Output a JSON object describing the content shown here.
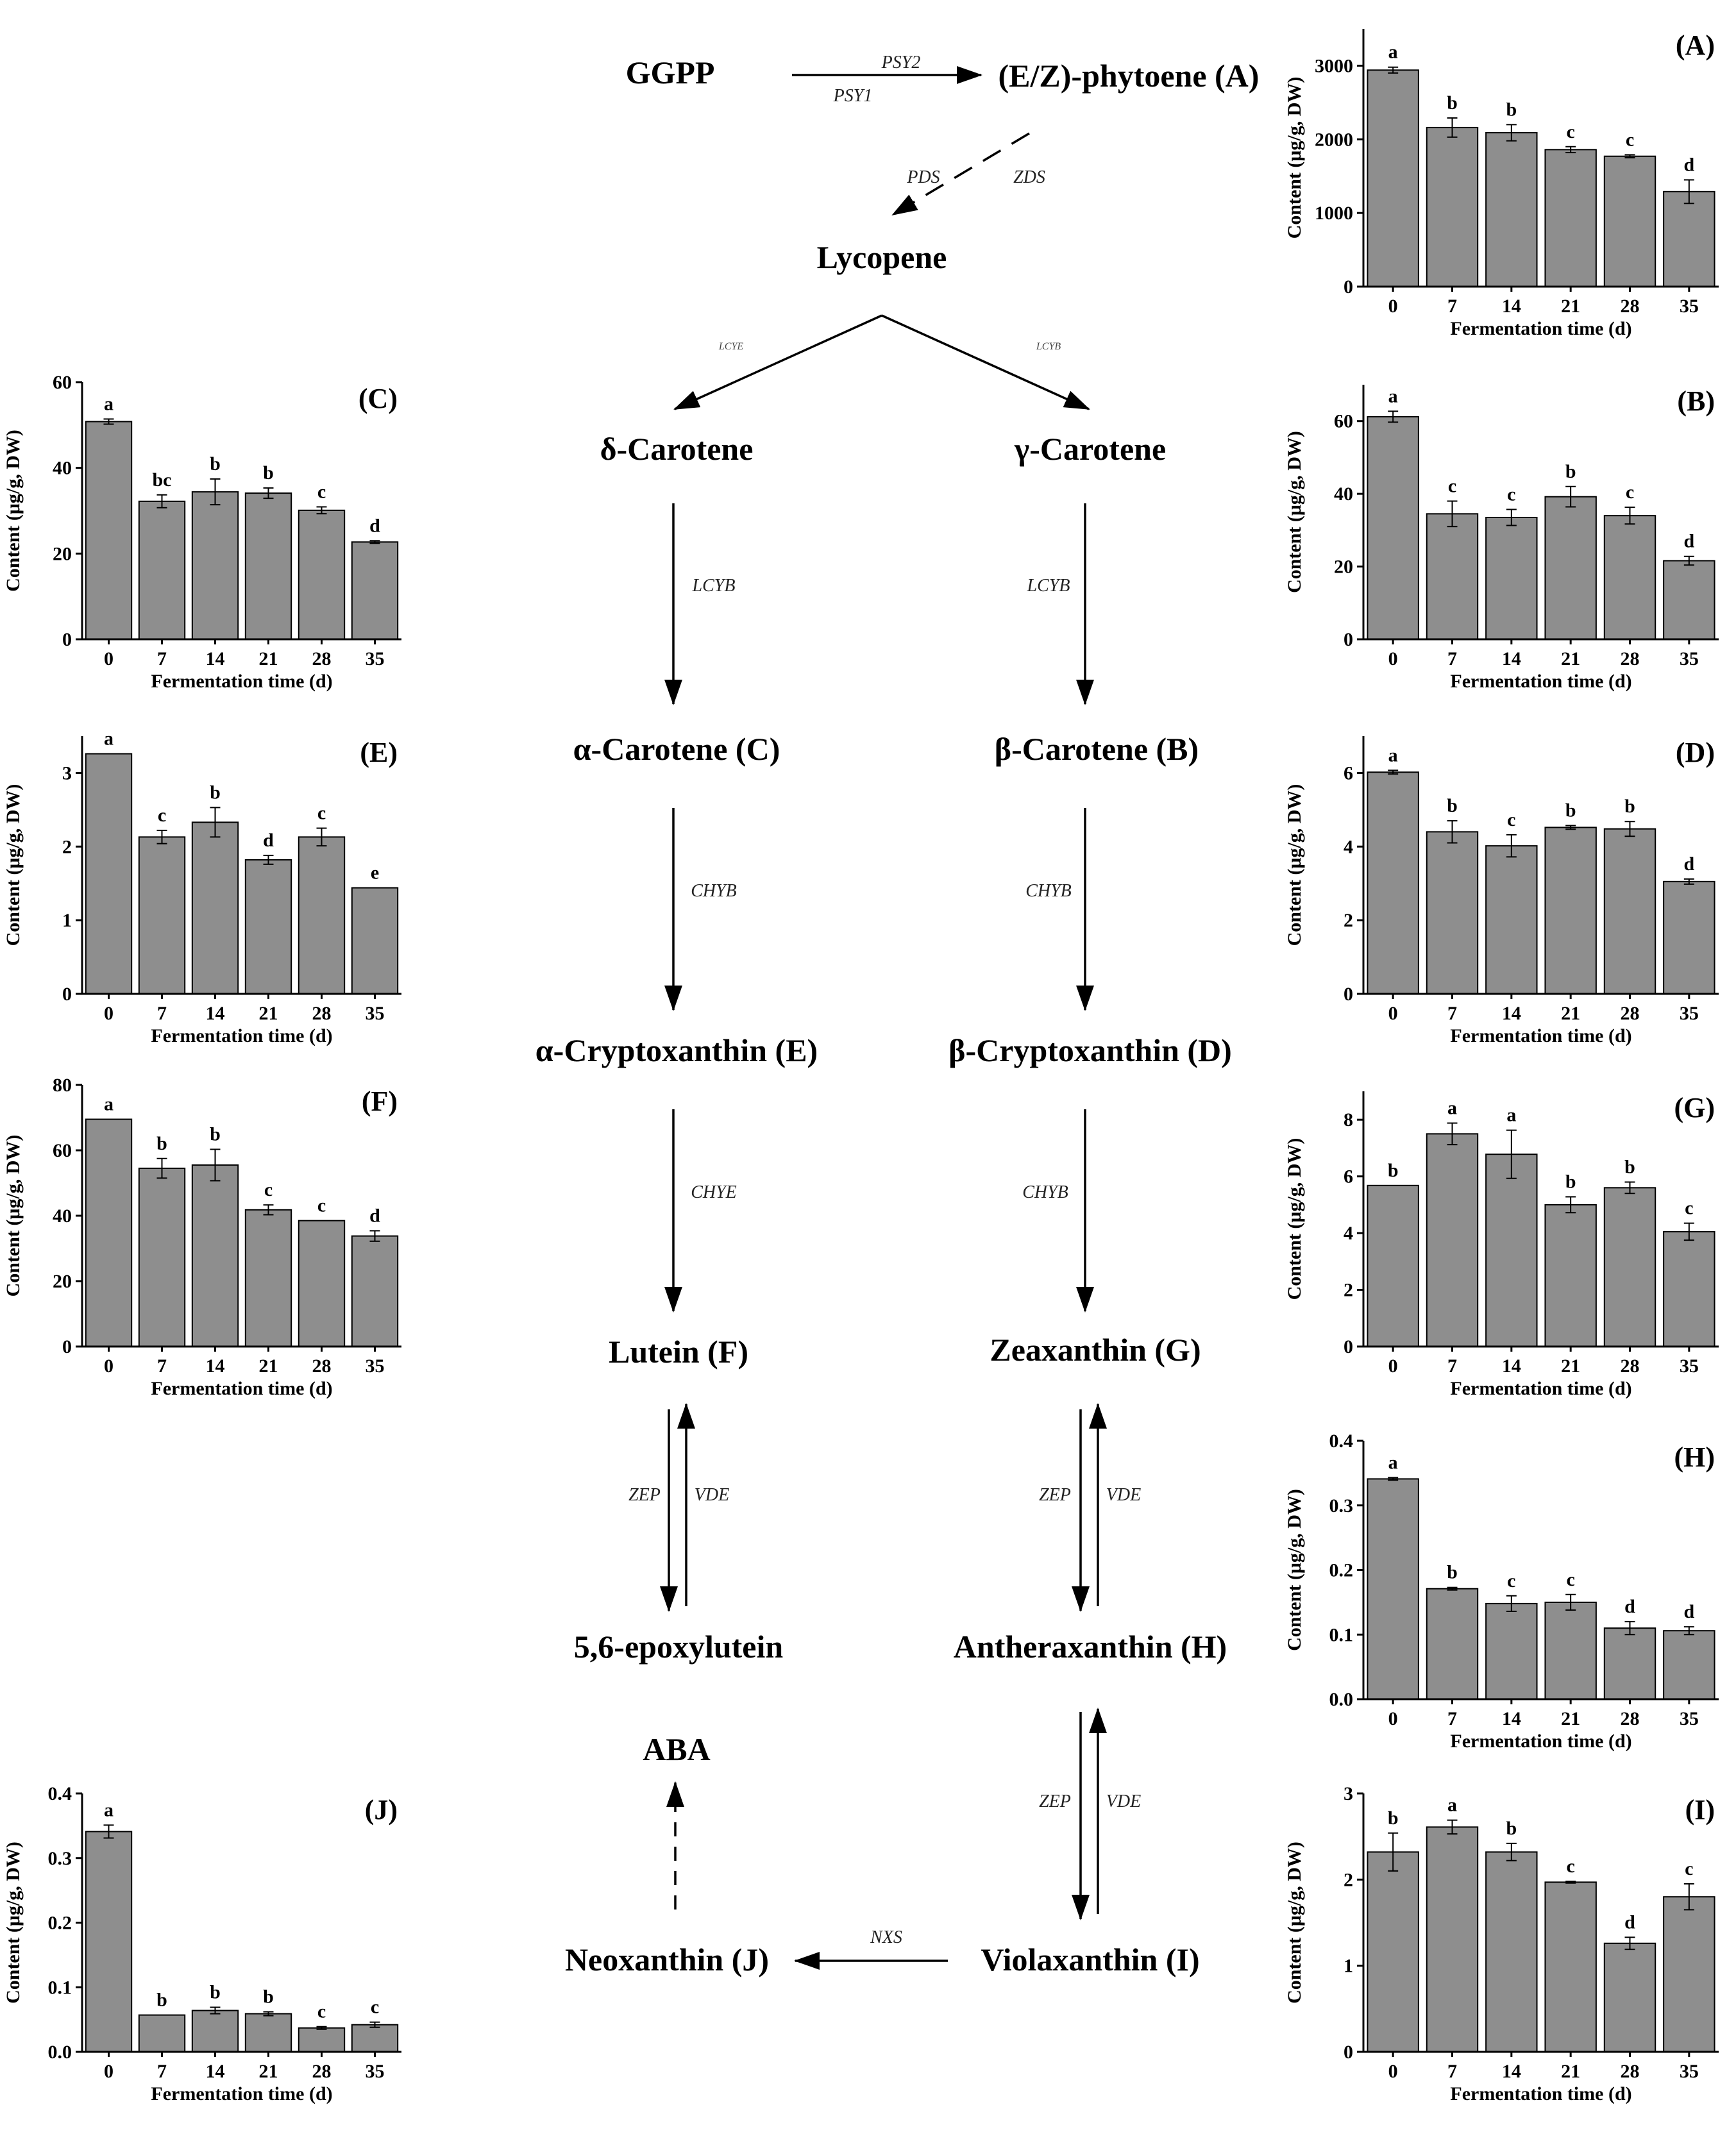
{
  "pathway": {
    "nodes": [
      {
        "id": "ggpp",
        "label": "GGPP"
      },
      {
        "id": "phytoene",
        "label": "(E/Z)-phytoene (A)"
      },
      {
        "id": "lycopene",
        "label": "Lycopene"
      },
      {
        "id": "delta",
        "label": "δ-Carotene"
      },
      {
        "id": "gamma",
        "label": "γ-Carotene"
      },
      {
        "id": "alpha",
        "label": "α-Carotene (C)"
      },
      {
        "id": "beta",
        "label": "β-Carotene (B)"
      },
      {
        "id": "acrypt",
        "label": "α-Cryptoxanthin (E)"
      },
      {
        "id": "bcrypt",
        "label": "β-Cryptoxanthin (D)"
      },
      {
        "id": "lutein",
        "label": "Lutein (F)"
      },
      {
        "id": "zeax",
        "label": "Zeaxanthin (G)"
      },
      {
        "id": "epoxy",
        "label": "5,6-epoxylutein"
      },
      {
        "id": "anthera",
        "label": "Antheraxanthin (H)"
      },
      {
        "id": "aba",
        "label": "ABA"
      },
      {
        "id": "neox",
        "label": "Neoxanthin (J)"
      },
      {
        "id": "viola",
        "label": "Violaxanthin (I)"
      }
    ],
    "enzymes": {
      "psy2": "PSY2",
      "psy1": "PSY1",
      "pds": "PDS",
      "zds": "ZDS",
      "lcye": "LCYE",
      "lcyb_small": "LCYB",
      "lcyb": "LCYB",
      "chyb": "CHYB",
      "chye": "CHYE",
      "zep": "ZEP",
      "vde": "VDE",
      "nxs": "NXS"
    }
  },
  "colors": {
    "bar": "#8e8e8e",
    "axis": "#000000",
    "text": "#000000"
  },
  "chart_data": [
    {
      "id": "A",
      "type": "bar",
      "title": "(A)",
      "categories": [
        "0",
        "7",
        "14",
        "21",
        "28",
        "35"
      ],
      "values": [
        2940,
        2160,
        2090,
        1860,
        1770,
        1290
      ],
      "errors": [
        40,
        130,
        110,
        40,
        20,
        160
      ],
      "letters": [
        "a",
        "b",
        "b",
        "c",
        "c",
        "d"
      ],
      "ylim": [
        0,
        3500
      ],
      "yticks": [
        0,
        1000,
        2000,
        3000
      ],
      "ytick_labels": [
        "0",
        "1000",
        "2000",
        "3000"
      ],
      "xlabel": "Fermentation time (d)",
      "ylabel": "Content (μg/g, DW)"
    },
    {
      "id": "B",
      "type": "bar",
      "title": "(B)",
      "categories": [
        "0",
        "7",
        "14",
        "21",
        "28",
        "35"
      ],
      "values": [
        61.2,
        34.5,
        33.5,
        39.2,
        34.0,
        21.6
      ],
      "errors": [
        1.5,
        3.5,
        2.2,
        2.8,
        2.3,
        1.2
      ],
      "letters": [
        "a",
        "c",
        "c",
        "b",
        "c",
        "d"
      ],
      "ylim": [
        0,
        70
      ],
      "yticks": [
        0,
        20,
        40,
        60
      ],
      "ytick_labels": [
        "0",
        "20",
        "40",
        "60"
      ],
      "xlabel": "Fermentation time (d)",
      "ylabel": "Content (μg/g, DW)"
    },
    {
      "id": "C",
      "type": "bar",
      "title": "(C)",
      "categories": [
        "0",
        "7",
        "14",
        "21",
        "28",
        "35"
      ],
      "values": [
        50.8,
        32.2,
        34.4,
        34.1,
        30.1,
        22.7
      ],
      "errors": [
        0.6,
        1.5,
        3.0,
        1.2,
        0.8,
        0.3
      ],
      "letters": [
        "a",
        "bc",
        "b",
        "b",
        "c",
        "d"
      ],
      "ylim": [
        0,
        60
      ],
      "yticks": [
        0,
        20,
        40,
        60
      ],
      "ytick_labels": [
        "0",
        "20",
        "40",
        "60"
      ],
      "xlabel": "Fermentation time (d)",
      "ylabel": "Content (μg/g, DW)"
    },
    {
      "id": "D",
      "type": "bar",
      "title": "(D)",
      "categories": [
        "0",
        "7",
        "14",
        "21",
        "28",
        "35"
      ],
      "values": [
        6.02,
        4.4,
        4.02,
        4.52,
        4.48,
        3.05
      ],
      "errors": [
        0.05,
        0.3,
        0.3,
        0.05,
        0.2,
        0.07
      ],
      "letters": [
        "a",
        "b",
        "c",
        "b",
        "b",
        "d"
      ],
      "ylim": [
        0,
        7
      ],
      "yticks": [
        0,
        2,
        4,
        6
      ],
      "ytick_labels": [
        "0",
        "2",
        "4",
        "6"
      ],
      "xlabel": "Fermentation time (d)",
      "ylabel": "Content (μg/g, DW)"
    },
    {
      "id": "E",
      "type": "bar",
      "title": "(E)",
      "categories": [
        "0",
        "7",
        "14",
        "21",
        "28",
        "35"
      ],
      "values": [
        3.26,
        2.13,
        2.33,
        1.82,
        2.13,
        1.44
      ],
      "errors": [
        0,
        0.09,
        0.2,
        0.06,
        0.12,
        0
      ],
      "letters": [
        "a",
        "c",
        "b",
        "d",
        "c",
        "e"
      ],
      "ylim": [
        0,
        3.5
      ],
      "yticks": [
        0,
        1,
        2,
        3
      ],
      "ytick_labels": [
        "0",
        "1",
        "2",
        "3"
      ],
      "xlabel": "Fermentation time (d)",
      "ylabel": "Content (μg/g, DW)"
    },
    {
      "id": "F",
      "type": "bar",
      "title": "(F)",
      "categories": [
        "0",
        "7",
        "14",
        "21",
        "28",
        "35"
      ],
      "values": [
        69.5,
        54.5,
        55.5,
        41.8,
        38.5,
        33.8
      ],
      "errors": [
        0,
        3.0,
        4.8,
        1.5,
        0,
        1.6
      ],
      "letters": [
        "a",
        "b",
        "b",
        "c",
        "c",
        "d"
      ],
      "ylim": [
        0,
        80
      ],
      "yticks": [
        0,
        20,
        40,
        60,
        80
      ],
      "ytick_labels": [
        "0",
        "20",
        "40",
        "60",
        "80"
      ],
      "xlabel": "Fermentation time (d)",
      "ylabel": "Content (μg/g, DW)"
    },
    {
      "id": "G",
      "type": "bar",
      "title": "(G)",
      "categories": [
        "0",
        "7",
        "14",
        "21",
        "28",
        "35"
      ],
      "values": [
        5.68,
        7.5,
        6.78,
        5.0,
        5.6,
        4.05
      ],
      "errors": [
        0,
        0.38,
        0.85,
        0.28,
        0.2,
        0.3
      ],
      "letters": [
        "b",
        "a",
        "a",
        "b",
        "b",
        "c"
      ],
      "ylim": [
        0,
        9
      ],
      "yticks": [
        0,
        2,
        4,
        6,
        8
      ],
      "ytick_labels": [
        "0",
        "2",
        "4",
        "6",
        "8"
      ],
      "xlabel": "Fermentation time (d)",
      "ylabel": "Content (μg/g, DW)"
    },
    {
      "id": "H",
      "type": "bar",
      "title": "(H)",
      "categories": [
        "0",
        "7",
        "14",
        "21",
        "28",
        "35"
      ],
      "values": [
        0.341,
        0.171,
        0.148,
        0.15,
        0.11,
        0.106
      ],
      "errors": [
        0.002,
        0.002,
        0.012,
        0.012,
        0.01,
        0.006
      ],
      "letters": [
        "a",
        "b",
        "c",
        "c",
        "d",
        "d"
      ],
      "ylim": [
        0,
        0.4
      ],
      "yticks": [
        0,
        0.1,
        0.2,
        0.3,
        0.4
      ],
      "ytick_labels": [
        "0.0",
        "0.1",
        "0.2",
        "0.3",
        "0.4"
      ],
      "xlabel": "Fermentation time (d)",
      "ylabel": "Content (μg/g, DW)"
    },
    {
      "id": "I",
      "type": "bar",
      "title": "(I)",
      "categories": [
        "0",
        "7",
        "14",
        "21",
        "28",
        "35"
      ],
      "values": [
        2.32,
        2.61,
        2.32,
        1.97,
        1.26,
        1.8
      ],
      "errors": [
        0.22,
        0.08,
        0.1,
        0.01,
        0.07,
        0.15
      ],
      "letters": [
        "b",
        "a",
        "b",
        "c",
        "d",
        "c"
      ],
      "ylim": [
        0,
        3
      ],
      "yticks": [
        0,
        1,
        2,
        3
      ],
      "ytick_labels": [
        "0",
        "1",
        "2",
        "3"
      ],
      "xlabel": "Fermentation time (d)",
      "ylabel": "Content (μg/g, DW)"
    },
    {
      "id": "J",
      "type": "bar",
      "title": "(J)",
      "categories": [
        "0",
        "7",
        "14",
        "21",
        "28",
        "35"
      ],
      "values": [
        0.341,
        0.057,
        0.064,
        0.059,
        0.037,
        0.042
      ],
      "errors": [
        0.01,
        0,
        0.005,
        0.003,
        0.002,
        0.004
      ],
      "letters": [
        "a",
        "b",
        "b",
        "b",
        "c",
        "c"
      ],
      "ylim": [
        0,
        0.4
      ],
      "yticks": [
        0,
        0.1,
        0.2,
        0.3,
        0.4
      ],
      "ytick_labels": [
        "0.0",
        "0.1",
        "0.2",
        "0.3",
        "0.4"
      ],
      "xlabel": "Fermentation time (d)",
      "ylabel": "Content (μg/g, DW)"
    }
  ]
}
